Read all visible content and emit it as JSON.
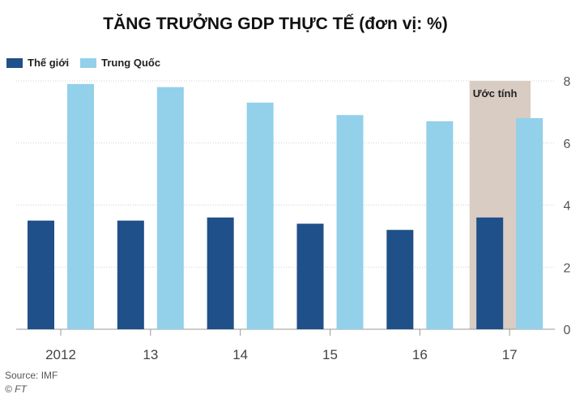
{
  "chart_data": {
    "type": "bar",
    "title": "TĂNG TRƯỞNG GDP THỰC TẾ (đơn vị: %)",
    "categories": [
      "2012",
      "13",
      "14",
      "15",
      "16",
      "17"
    ],
    "series": [
      {
        "name": "Thế giới",
        "color": "#1f5089",
        "values": [
          3.5,
          3.5,
          3.6,
          3.4,
          3.2,
          3.6
        ]
      },
      {
        "name": "Trung Quốc",
        "color": "#93d0ea",
        "values": [
          7.9,
          7.8,
          7.3,
          6.9,
          6.7,
          6.8
        ]
      }
    ],
    "ylim": [
      0,
      8
    ],
    "yticks": [
      "0",
      "2",
      "4",
      "6",
      "8"
    ],
    "ytick_values": [
      0,
      2,
      4,
      6,
      8
    ],
    "y_axis_side": "right",
    "grid": true,
    "legend_position": "top-left",
    "annotation": {
      "label": "Ước tính",
      "category": "17",
      "color": "#d9ccc3"
    }
  },
  "source": "Source: IMF",
  "copyright": "© FT"
}
